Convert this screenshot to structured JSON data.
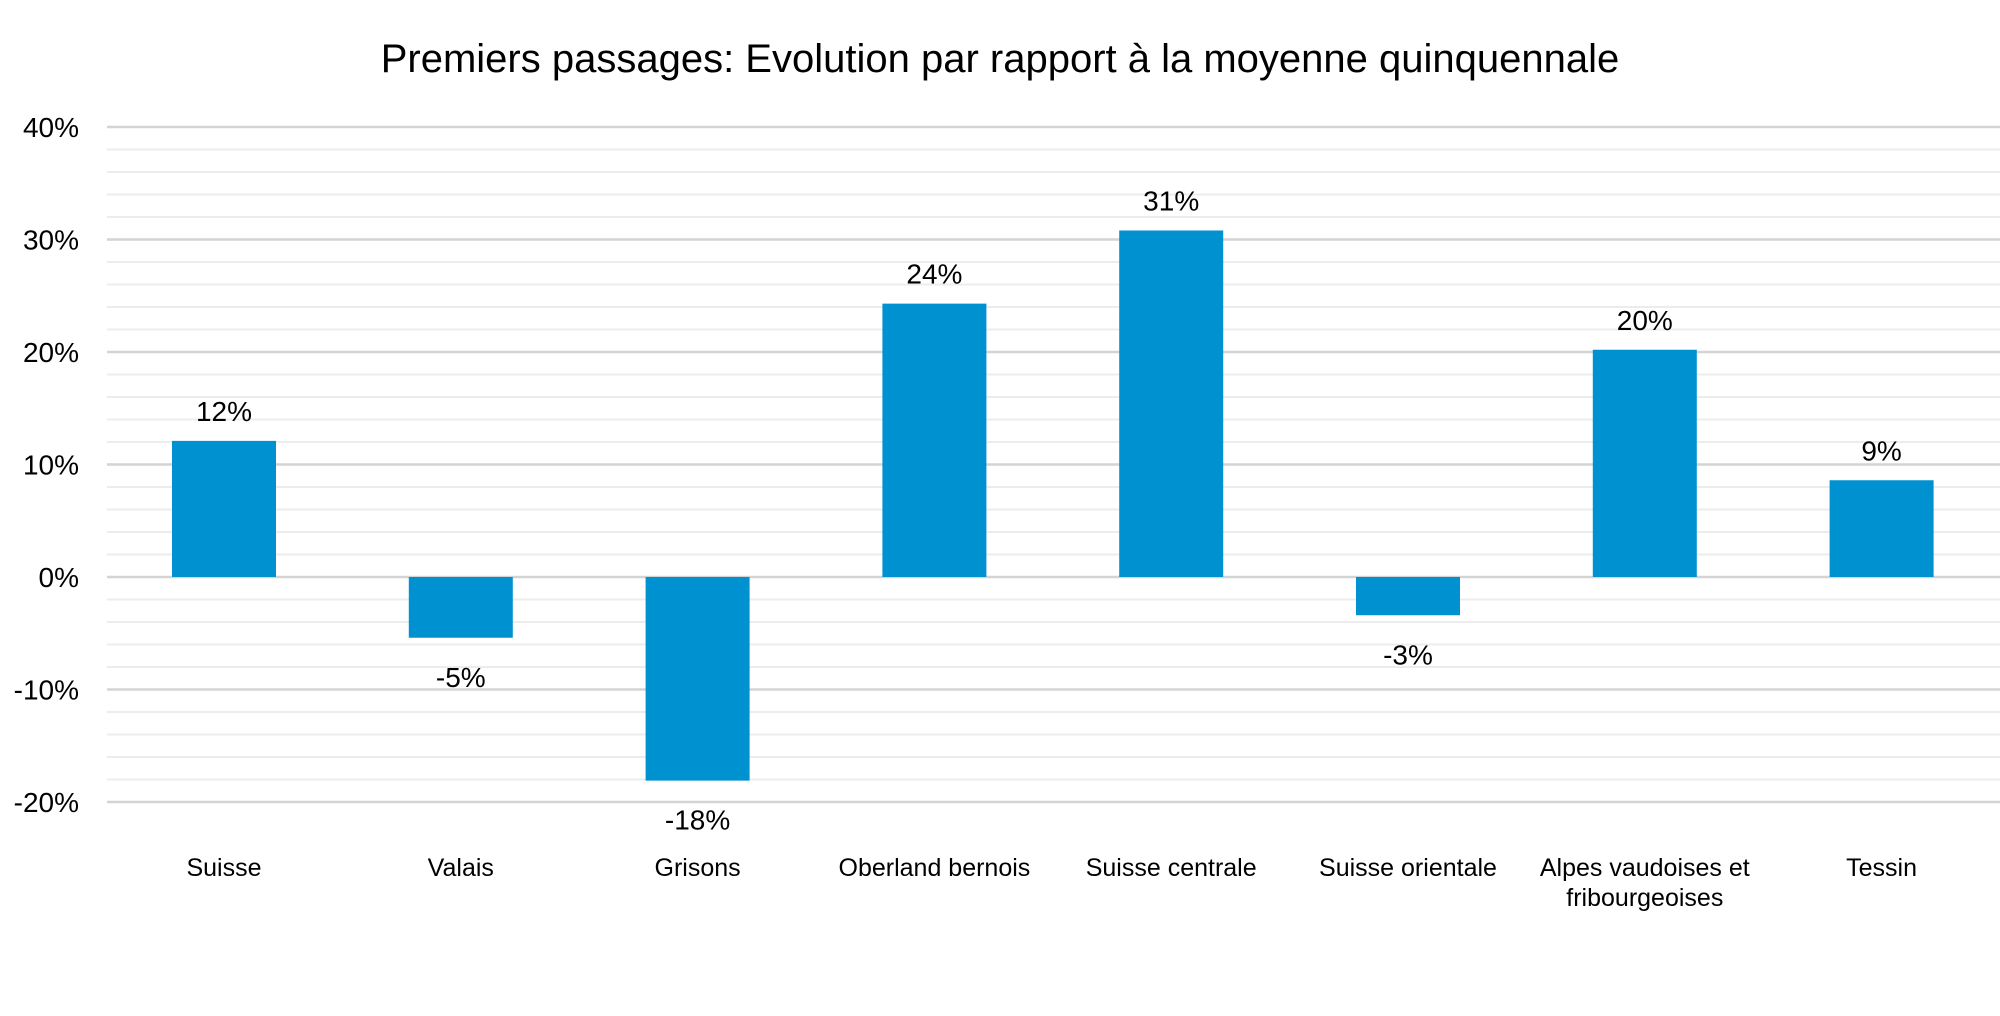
{
  "chart_data": {
    "type": "bar",
    "title": "Premiers passages: Evolution par rapport à la moyenne quinquennale",
    "xlabel": "",
    "ylabel": "",
    "ylim": [
      -20,
      40
    ],
    "y_ticks": [
      40,
      30,
      20,
      10,
      0,
      -10,
      -20
    ],
    "y_tick_labels": [
      "40%",
      "30%",
      "20%",
      "10%",
      "0%",
      "-10%",
      "-20%"
    ],
    "grid": true,
    "legend": "none",
    "bar_color": "#0092d0",
    "categories": [
      [
        "Suisse"
      ],
      [
        "Valais"
      ],
      [
        "Grisons"
      ],
      [
        "Oberland bernois"
      ],
      [
        "Suisse centrale"
      ],
      [
        "Suisse orientale"
      ],
      [
        "Alpes vaudoises et",
        "fribourgeoises"
      ],
      [
        "Tessin"
      ]
    ],
    "values": [
      12.1,
      -5.4,
      -18.1,
      24.3,
      30.8,
      -3.4,
      20.2,
      8.6
    ],
    "data_labels": [
      "12%",
      "-5%",
      "-18%",
      "24%",
      "31%",
      "-3%",
      "20%",
      "9%"
    ]
  }
}
